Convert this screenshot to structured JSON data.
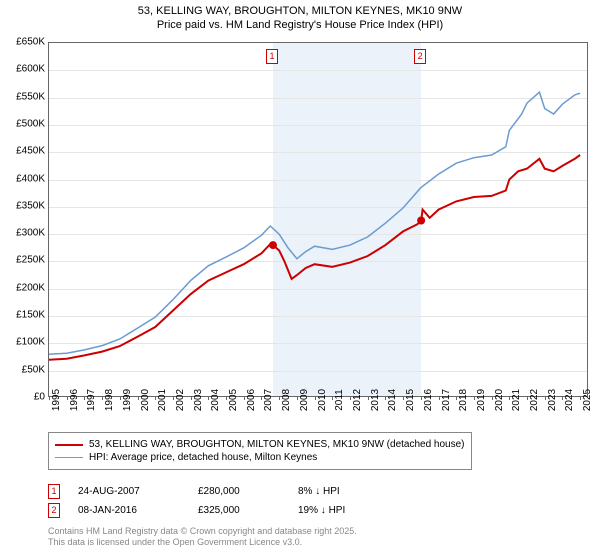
{
  "title": {
    "line1": "53, KELLING WAY, BROUGHTON, MILTON KEYNES, MK10 9NW",
    "line2": "Price paid vs. HM Land Registry's House Price Index (HPI)"
  },
  "chart": {
    "type": "line",
    "background_color": "#ffffff",
    "shade_color": "#ecf2f9",
    "grid_color": "#e5e5e5",
    "axis_color": "#666666",
    "ylim": [
      0,
      650000
    ],
    "ytick_step": 50000,
    "ytick_labels": [
      "£0",
      "£50K",
      "£100K",
      "£150K",
      "£200K",
      "£250K",
      "£300K",
      "£350K",
      "£400K",
      "£450K",
      "£500K",
      "£550K",
      "£600K",
      "£650K"
    ],
    "x_range": [
      1995,
      2025.5
    ],
    "x_ticks": [
      1995,
      1996,
      1997,
      1998,
      1999,
      2000,
      2001,
      2002,
      2003,
      2004,
      2005,
      2006,
      2007,
      2008,
      2009,
      2010,
      2011,
      2012,
      2013,
      2014,
      2015,
      2016,
      2017,
      2018,
      2019,
      2020,
      2021,
      2022,
      2023,
      2024,
      2025
    ],
    "shade_start": 2007.65,
    "shade_end": 2016.02,
    "series": [
      {
        "name": "price_paid",
        "label": "53, KELLING WAY, BROUGHTON, MILTON KEYNES, MK10 9NW (detached house)",
        "color": "#cc0000",
        "width": 2,
        "points": [
          [
            1995,
            70000
          ],
          [
            1996,
            72000
          ],
          [
            1997,
            78000
          ],
          [
            1998,
            85000
          ],
          [
            1999,
            95000
          ],
          [
            2000,
            112000
          ],
          [
            2001,
            130000
          ],
          [
            2002,
            160000
          ],
          [
            2003,
            190000
          ],
          [
            2004,
            215000
          ],
          [
            2005,
            230000
          ],
          [
            2006,
            245000
          ],
          [
            2007,
            265000
          ],
          [
            2007.5,
            282000
          ],
          [
            2007.65,
            280000
          ],
          [
            2008,
            270000
          ],
          [
            2008.3,
            250000
          ],
          [
            2008.7,
            218000
          ],
          [
            2009,
            225000
          ],
          [
            2009.5,
            238000
          ],
          [
            2010,
            245000
          ],
          [
            2011,
            240000
          ],
          [
            2012,
            248000
          ],
          [
            2013,
            260000
          ],
          [
            2014,
            280000
          ],
          [
            2015,
            305000
          ],
          [
            2015.8,
            318000
          ],
          [
            2016.02,
            325000
          ],
          [
            2016.1,
            345000
          ],
          [
            2016.5,
            330000
          ],
          [
            2017,
            345000
          ],
          [
            2018,
            360000
          ],
          [
            2019,
            368000
          ],
          [
            2020,
            370000
          ],
          [
            2020.8,
            380000
          ],
          [
            2021,
            400000
          ],
          [
            2021.5,
            415000
          ],
          [
            2022,
            420000
          ],
          [
            2022.7,
            438000
          ],
          [
            2023,
            420000
          ],
          [
            2023.5,
            415000
          ],
          [
            2024,
            425000
          ],
          [
            2024.7,
            438000
          ],
          [
            2025,
            445000
          ]
        ]
      },
      {
        "name": "hpi",
        "label": "HPI: Average price, detached house, Milton Keynes",
        "color": "#6a9bd1",
        "width": 1.5,
        "points": [
          [
            1995,
            80000
          ],
          [
            1996,
            82000
          ],
          [
            1997,
            88000
          ],
          [
            1998,
            96000
          ],
          [
            1999,
            108000
          ],
          [
            2000,
            128000
          ],
          [
            2001,
            148000
          ],
          [
            2002,
            180000
          ],
          [
            2003,
            215000
          ],
          [
            2004,
            242000
          ],
          [
            2005,
            258000
          ],
          [
            2006,
            275000
          ],
          [
            2007,
            298000
          ],
          [
            2007.5,
            315000
          ],
          [
            2008,
            300000
          ],
          [
            2008.5,
            275000
          ],
          [
            2009,
            255000
          ],
          [
            2009.5,
            268000
          ],
          [
            2010,
            278000
          ],
          [
            2011,
            272000
          ],
          [
            2012,
            280000
          ],
          [
            2013,
            295000
          ],
          [
            2014,
            320000
          ],
          [
            2015,
            348000
          ],
          [
            2016,
            385000
          ],
          [
            2017,
            410000
          ],
          [
            2018,
            430000
          ],
          [
            2019,
            440000
          ],
          [
            2020,
            445000
          ],
          [
            2020.8,
            460000
          ],
          [
            2021,
            490000
          ],
          [
            2021.7,
            520000
          ],
          [
            2022,
            540000
          ],
          [
            2022.7,
            560000
          ],
          [
            2023,
            530000
          ],
          [
            2023.5,
            520000
          ],
          [
            2024,
            538000
          ],
          [
            2024.7,
            555000
          ],
          [
            2025,
            558000
          ]
        ]
      }
    ],
    "sale_markers": [
      {
        "num": "1",
        "x": 2007.65,
        "y": 280000,
        "color": "#cc0000"
      },
      {
        "num": "2",
        "x": 2016.02,
        "y": 325000,
        "color": "#cc0000"
      }
    ]
  },
  "sales": [
    {
      "num": "1",
      "date": "24-AUG-2007",
      "price": "£280,000",
      "diff": "8% ↓ HPI",
      "color": "#cc0000"
    },
    {
      "num": "2",
      "date": "08-JAN-2016",
      "price": "£325,000",
      "diff": "19% ↓ HPI",
      "color": "#cc0000"
    }
  ],
  "footer": {
    "line1": "Contains HM Land Registry data © Crown copyright and database right 2025.",
    "line2": "This data is licensed under the Open Government Licence v3.0."
  },
  "fonts": {
    "title_size": 12,
    "axis_size": 10,
    "legend_size": 10,
    "footer_size": 9
  }
}
